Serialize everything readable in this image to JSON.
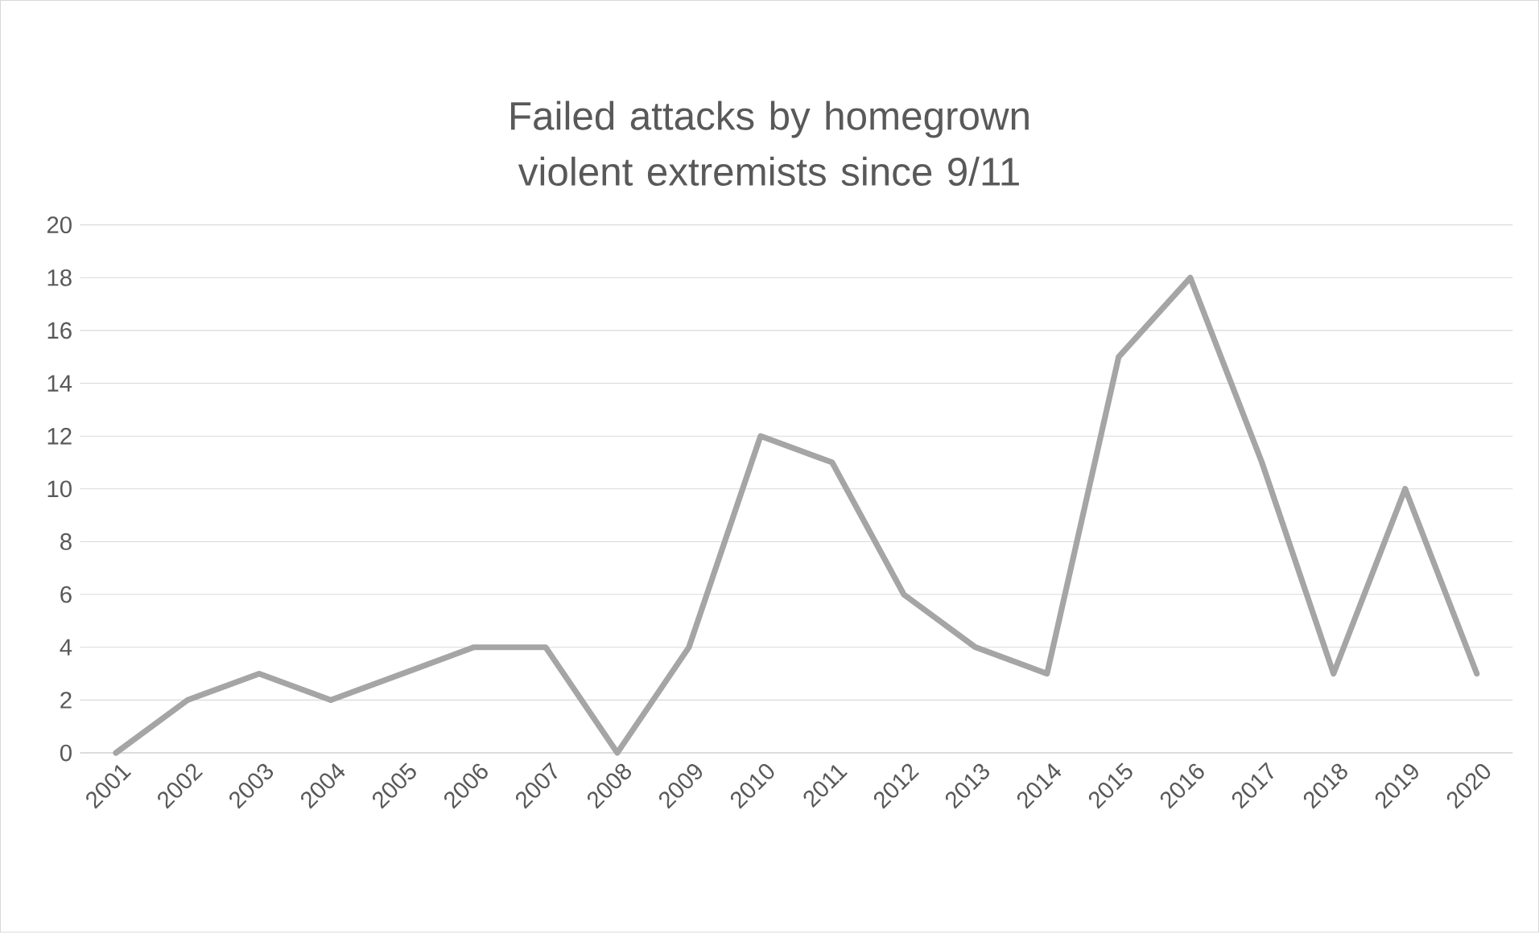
{
  "chart_data": {
    "type": "line",
    "title": "Failed attacks by homegrown violent extremists since 9/11",
    "categories": [
      "2001",
      "2002",
      "2003",
      "2004",
      "2005",
      "2006",
      "2007",
      "2008",
      "2009",
      "2010",
      "2011",
      "2012",
      "2013",
      "2014",
      "2015",
      "2016",
      "2017",
      "2018",
      "2019",
      "2020"
    ],
    "values": [
      0,
      2,
      3,
      2,
      3,
      4,
      4,
      0,
      4,
      12,
      11,
      6,
      4,
      3,
      15,
      18,
      11,
      3,
      10,
      3
    ],
    "color": "#a5a5a5",
    "ylim": [
      0,
      20
    ],
    "yticks": [
      0,
      2,
      4,
      6,
      8,
      10,
      12,
      14,
      16,
      18,
      20
    ],
    "grid": "y"
  }
}
